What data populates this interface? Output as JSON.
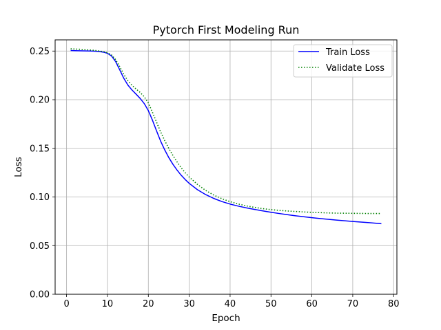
{
  "chart_data": {
    "type": "line",
    "title": "Pytorch First Modeling Run",
    "xlabel": "Epoch",
    "ylabel": "Loss",
    "xlim": [
      -2.8,
      80.8
    ],
    "ylim": [
      0.0,
      0.2615
    ],
    "xticks": [
      0,
      10,
      20,
      30,
      40,
      50,
      60,
      70,
      80
    ],
    "xtick_labels": [
      "0",
      "10",
      "20",
      "30",
      "40",
      "50",
      "60",
      "70",
      "80"
    ],
    "yticks": [
      0.0,
      0.05,
      0.1,
      0.15,
      0.2,
      0.25
    ],
    "ytick_labels": [
      "0.00",
      "0.05",
      "0.10",
      "0.15",
      "0.20",
      "0.25"
    ],
    "grid": true,
    "legend_position": "top-right",
    "series": [
      {
        "name": "Train Loss",
        "color": "#0000ff",
        "style": "solid",
        "x": [
          1,
          2,
          3,
          4,
          5,
          6,
          7,
          8,
          9,
          10,
          11,
          12,
          13,
          14,
          15,
          16,
          17,
          18,
          19,
          20,
          21,
          22,
          23,
          24,
          25,
          26,
          27,
          28,
          29,
          30,
          32,
          34,
          36,
          38,
          40,
          42,
          44,
          46,
          48,
          50,
          52,
          54,
          56,
          58,
          60,
          62,
          64,
          66,
          68,
          70,
          72,
          74,
          76,
          77
        ],
        "y": [
          0.2505,
          0.2504,
          0.2503,
          0.2502,
          0.2501,
          0.25,
          0.2498,
          0.2495,
          0.2489,
          0.2477,
          0.2449,
          0.2392,
          0.2307,
          0.222,
          0.215,
          0.21,
          0.2057,
          0.2013,
          0.196,
          0.1888,
          0.179,
          0.168,
          0.1575,
          0.1485,
          0.1405,
          0.1337,
          0.1278,
          0.1225,
          0.118,
          0.114,
          0.1075,
          0.1025,
          0.0985,
          0.0953,
          0.0927,
          0.0906,
          0.0888,
          0.0872,
          0.0857,
          0.0843,
          0.083,
          0.0818,
          0.0807,
          0.0797,
          0.0787,
          0.0778,
          0.077,
          0.0762,
          0.0755,
          0.0748,
          0.0742,
          0.0736,
          0.0729,
          0.0725
        ]
      },
      {
        "name": "Validate Loss",
        "color": "#008000",
        "style": "dotted",
        "x": [
          1,
          2,
          3,
          4,
          5,
          6,
          7,
          8,
          9,
          10,
          11,
          12,
          13,
          14,
          15,
          16,
          17,
          18,
          19,
          20,
          21,
          22,
          23,
          24,
          25,
          26,
          27,
          28,
          29,
          30,
          32,
          34,
          36,
          38,
          40,
          42,
          44,
          46,
          48,
          50,
          52,
          54,
          56,
          58,
          60,
          62,
          64,
          66,
          68,
          70,
          72,
          74,
          76,
          77
        ],
        "y": [
          0.2523,
          0.2521,
          0.2519,
          0.2516,
          0.2513,
          0.251,
          0.2506,
          0.2501,
          0.2494,
          0.2482,
          0.246,
          0.2412,
          0.234,
          0.226,
          0.2195,
          0.2148,
          0.211,
          0.2075,
          0.203,
          0.1965,
          0.1872,
          0.177,
          0.167,
          0.158,
          0.15,
          0.1428,
          0.1362,
          0.1302,
          0.125,
          0.1205,
          0.113,
          0.1068,
          0.102,
          0.0982,
          0.0952,
          0.0928,
          0.0908,
          0.0893,
          0.088,
          0.087,
          0.0862,
          0.0856,
          0.0851,
          0.0846,
          0.0842,
          0.0839,
          0.0836,
          0.0834,
          0.0833,
          0.0832,
          0.0831,
          0.083,
          0.083,
          0.083
        ]
      }
    ]
  }
}
